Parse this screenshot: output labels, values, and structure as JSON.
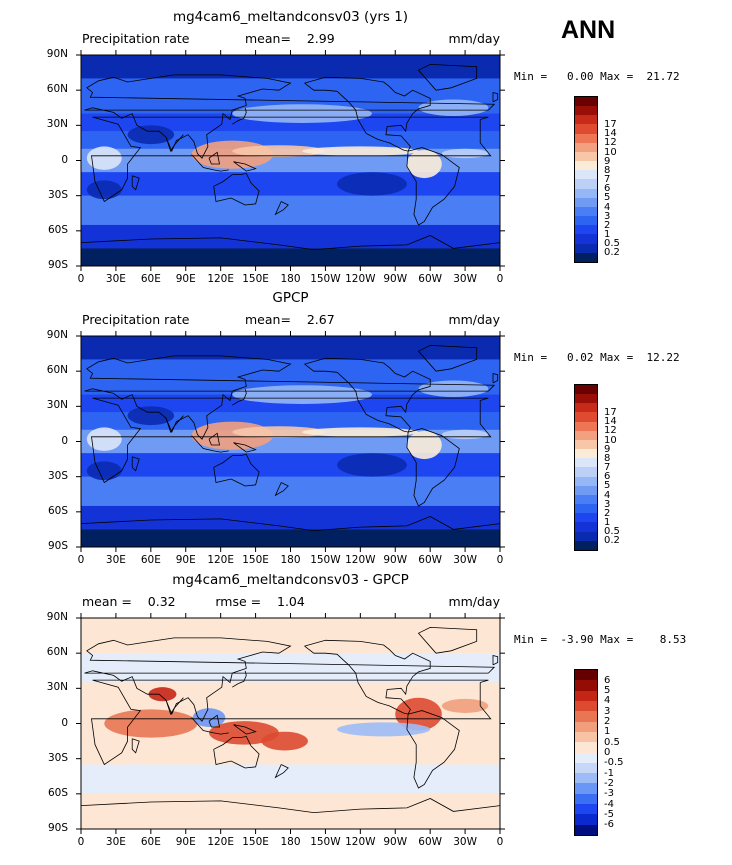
{
  "season": "ANN",
  "panels": [
    {
      "title": "mg4cam6_meltandconsv03 (yrs 1)",
      "variable": "Precipitation rate",
      "stats": "mean=    2.99",
      "units": "mm/day",
      "minmax": "Min =   0.00 Max =  21.72",
      "colors": [
        "#002060",
        "#0a2ab0",
        "#1433d6",
        "#1e46f0",
        "#2d64f2",
        "#4a7ef4",
        "#6f9bf5",
        "#96b7f6",
        "#bcd0f7",
        "#dbe6f8",
        "#fbecd9",
        "#f8c7a8",
        "#f3a080",
        "#ec7656",
        "#e04a30",
        "#c62a18",
        "#9a0e08",
        "#6a0000"
      ],
      "labels": [
        "0.2",
        "0.5",
        "1",
        "2",
        "3",
        "4",
        "5",
        "6",
        "7",
        "8",
        "9",
        "10",
        "12",
        "14",
        "17"
      ]
    },
    {
      "title": "GPCP",
      "variable": "Precipitation rate",
      "stats": "mean=    2.67",
      "units": "mm/day",
      "minmax": "Min =   0.02 Max =  12.22",
      "colors": [
        "#002060",
        "#0a2ab0",
        "#1433d6",
        "#1e46f0",
        "#2d64f2",
        "#4a7ef4",
        "#6f9bf5",
        "#96b7f6",
        "#bcd0f7",
        "#dbe6f8",
        "#fbecd9",
        "#f8c7a8",
        "#f3a080",
        "#ec7656",
        "#e04a30",
        "#c62a18",
        "#9a0e08",
        "#6a0000"
      ],
      "labels": [
        "0.2",
        "0.5",
        "1",
        "2",
        "3",
        "4",
        "5",
        "6",
        "7",
        "8",
        "9",
        "10",
        "12",
        "14",
        "17"
      ]
    },
    {
      "title": "mg4cam6_meltandconsv03 - GPCP",
      "variable": "",
      "stats": "mean =    0.32          rmse =    1.04",
      "units": "mm/day",
      "minmax": "Min =  -3.90 Max =    8.53",
      "colors": [
        "#000f80",
        "#0a2ad0",
        "#1e46f0",
        "#3a6ff4",
        "#6a96f6",
        "#9dbbf7",
        "#c6d7f8",
        "#e4edf9",
        "#fde6d4",
        "#f8c3a4",
        "#f09e7c",
        "#e87554",
        "#dc4a30",
        "#c42616",
        "#940c04",
        "#640000"
      ],
      "labels": [
        "-6",
        "-5",
        "-4",
        "-3",
        "-2",
        "-1",
        "-0.5",
        "0",
        "0.5",
        "1",
        "2",
        "3",
        "4",
        "5",
        "6"
      ]
    }
  ],
  "lat_labels": [
    "90N",
    "60N",
    "30N",
    "0",
    "30S",
    "60S",
    "90S"
  ],
  "lon_labels": [
    "0",
    "30E",
    "60E",
    "90E",
    "120E",
    "150E",
    "180",
    "150W",
    "120W",
    "90W",
    "60W",
    "30W",
    "0"
  ]
}
